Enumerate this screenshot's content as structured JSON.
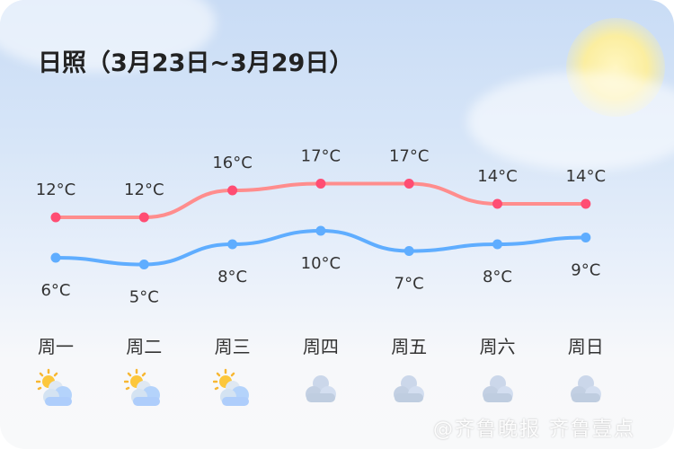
{
  "title": "日照（3月23日~3月29日）",
  "colors": {
    "high": "#ff8d8d",
    "high_dot": "#ff4d73",
    "low": "#5fadff",
    "low_dot": "#5fadff"
  },
  "chart_data": {
    "type": "line",
    "categories": [
      "周一",
      "周二",
      "周三",
      "周四",
      "周五",
      "周六",
      "周日"
    ],
    "series": [
      {
        "values": [
          12,
          12,
          16,
          17,
          17,
          14,
          14
        ],
        "labels": [
          "12°C",
          "12°C",
          "16°C",
          "17°C",
          "17°C",
          "14°C",
          "14°C"
        ]
      },
      {
        "values": [
          6,
          5,
          8,
          10,
          7,
          8,
          9
        ],
        "labels": [
          "6°C",
          "5°C",
          "8°C",
          "10°C",
          "7°C",
          "8°C",
          "9°C"
        ]
      }
    ]
  },
  "days": [
    {
      "label": "周一",
      "icon": "partly-cloudy-icon"
    },
    {
      "label": "周二",
      "icon": "partly-cloudy-icon"
    },
    {
      "label": "周三",
      "icon": "partly-cloudy-icon"
    },
    {
      "label": "周四",
      "icon": "cloudy-icon"
    },
    {
      "label": "周五",
      "icon": "cloudy-icon"
    },
    {
      "label": "周六",
      "icon": "cloudy-icon"
    },
    {
      "label": "周日",
      "icon": "cloudy-icon"
    }
  ],
  "watermark": "@齐鲁晚报 齐鲁壹点"
}
